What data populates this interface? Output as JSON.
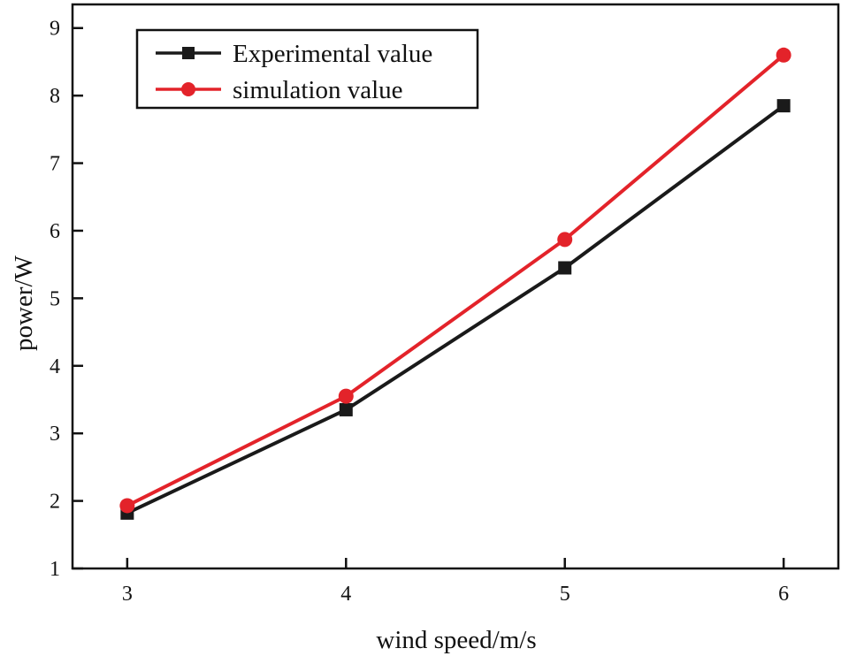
{
  "chart_data": {
    "type": "line",
    "title": "",
    "xlabel": "wind speed/m/s",
    "ylabel": "power/W",
    "x": [
      3,
      4,
      5,
      6
    ],
    "xlim": [
      2.75,
      6.25
    ],
    "ylim": [
      1,
      9.35
    ],
    "xticks": [
      "3",
      "4",
      "5",
      "6"
    ],
    "yticks": [
      "1",
      "2",
      "3",
      "4",
      "5",
      "6",
      "7",
      "8",
      "9"
    ],
    "grid": false,
    "legend_position": "top-left",
    "series": [
      {
        "name": "Experimental value",
        "marker": "square",
        "color": "#1a1a1a",
        "values": [
          1.82,
          3.35,
          5.45,
          7.85
        ]
      },
      {
        "name": "simulation value",
        "marker": "circle",
        "color": "#e3232a",
        "values": [
          1.93,
          3.55,
          5.87,
          8.6
        ]
      }
    ]
  }
}
